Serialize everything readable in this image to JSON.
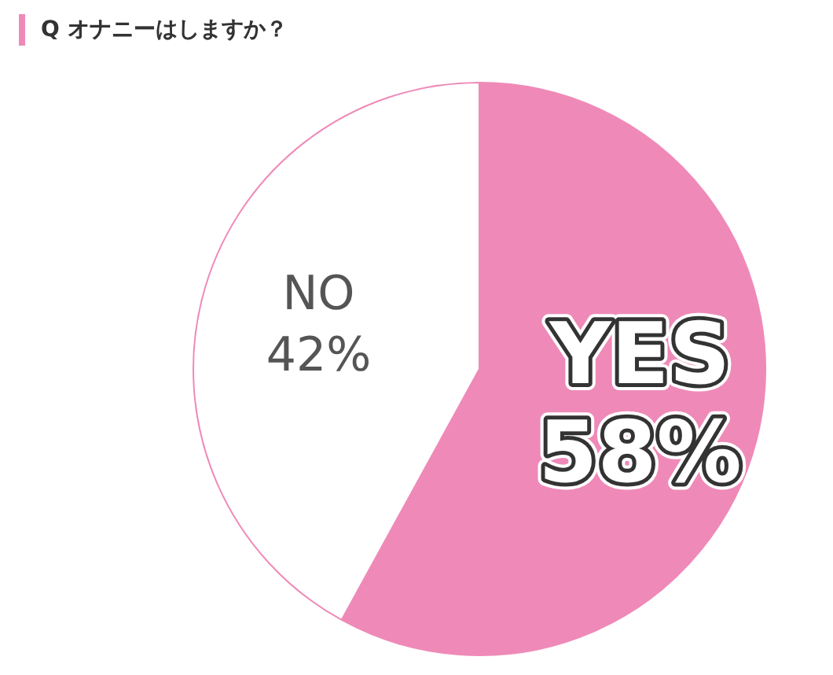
{
  "chart_data": {
    "type": "pie",
    "title": "Q オナニーはしますか？",
    "categories": [
      "YES",
      "NO"
    ],
    "values": [
      58,
      42
    ],
    "value_labels": [
      "58%",
      "42%"
    ],
    "colors": [
      "#ef8ab8",
      "#ffffff"
    ],
    "legend": false
  }
}
